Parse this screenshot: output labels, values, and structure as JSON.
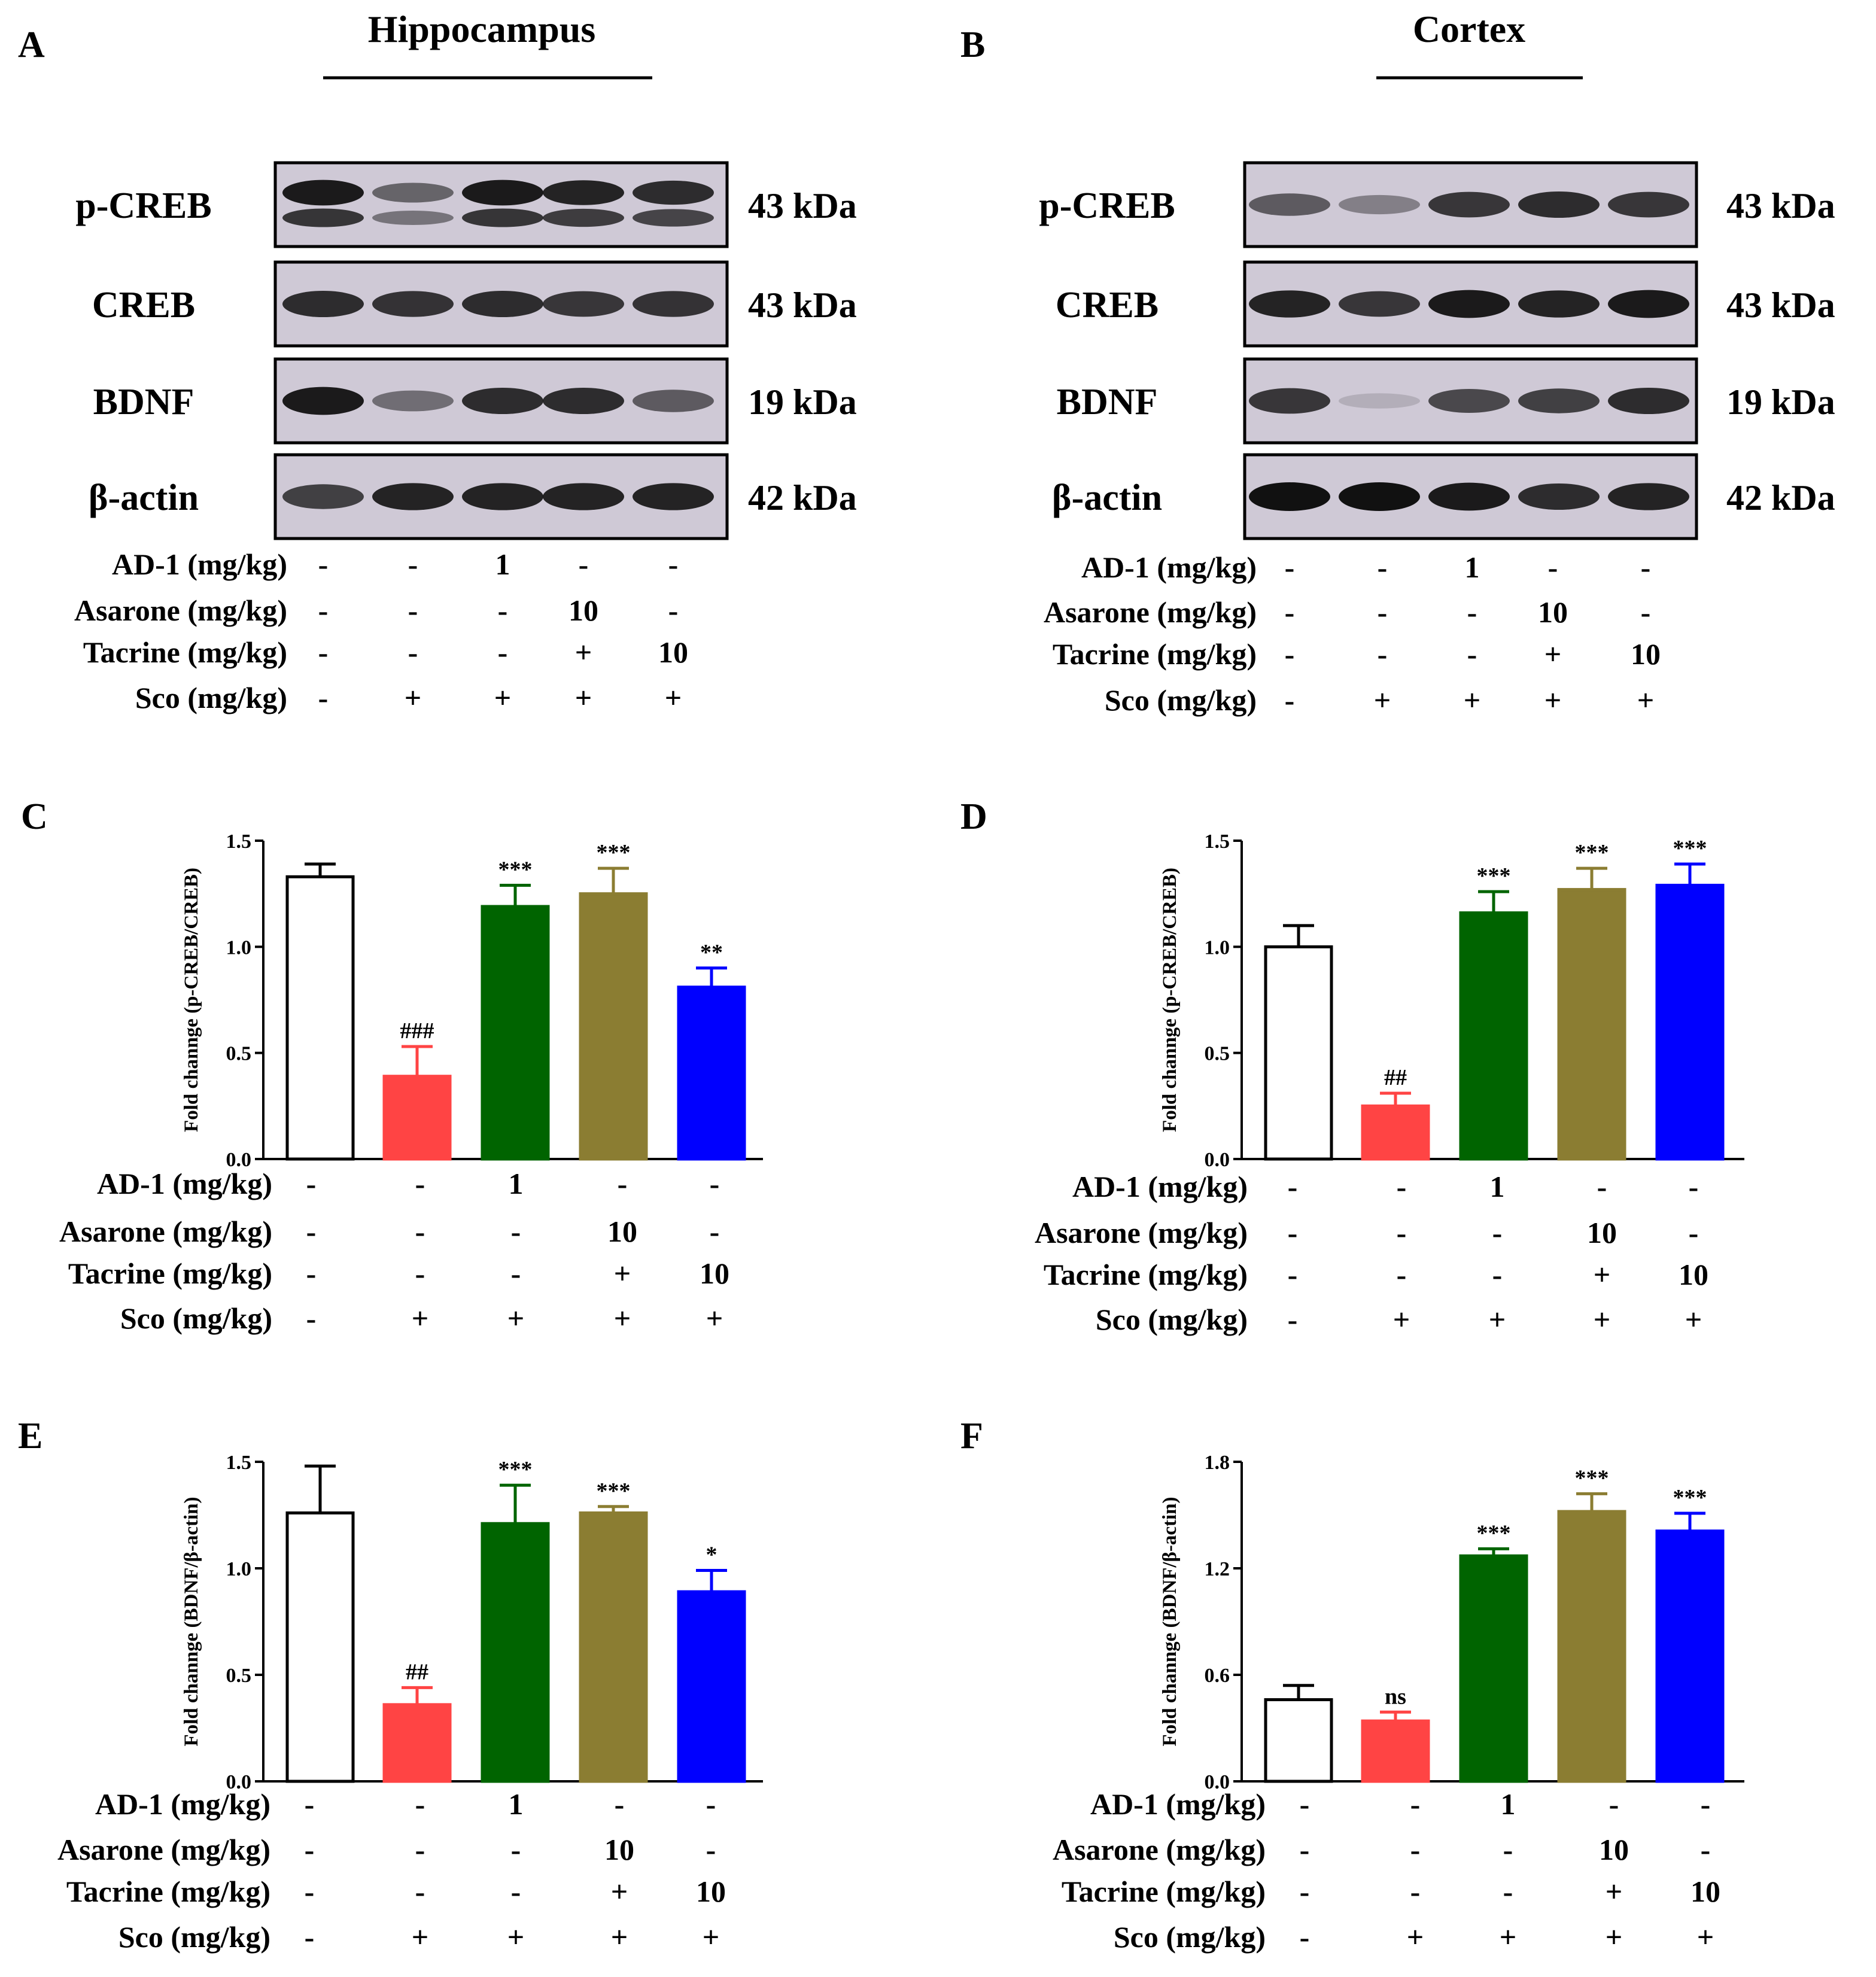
{
  "figure": {
    "panel_letters": [
      "A",
      "B",
      "C",
      "D",
      "E",
      "F"
    ],
    "blots": [
      {
        "region_title": "Hippocampus",
        "rows": [
          {
            "protein": "p-CREB",
            "mw": "43 kDa",
            "intensities": [
              0.95,
              0.55,
              0.95,
              0.9,
              0.85
            ],
            "double": true
          },
          {
            "protein": "CREB",
            "mw": "43 kDa",
            "intensities": [
              0.85,
              0.82,
              0.85,
              0.8,
              0.82
            ],
            "double": false
          },
          {
            "protein": "BDNF",
            "mw": "19 kDa",
            "intensities": [
              0.95,
              0.5,
              0.85,
              0.85,
              0.6
            ],
            "double": false
          },
          {
            "protein": "β-actin",
            "mw": "42 kDa",
            "intensities": [
              0.75,
              0.9,
              0.9,
              0.9,
              0.9
            ],
            "double": false
          }
        ]
      },
      {
        "region_title": "Cortex",
        "rows": [
          {
            "protein": "p-CREB",
            "mw": "43 kDa",
            "intensities": [
              0.6,
              0.4,
              0.8,
              0.85,
              0.8
            ],
            "double": false
          },
          {
            "protein": "CREB",
            "mw": "43 kDa",
            "intensities": [
              0.9,
              0.8,
              0.95,
              0.9,
              0.95
            ],
            "double": false
          },
          {
            "protein": "BDNF",
            "mw": "19 kDa",
            "intensities": [
              0.8,
              0.15,
              0.7,
              0.75,
              0.85
            ],
            "double": false
          },
          {
            "protein": "β-actin",
            "mw": "42 kDa",
            "intensities": [
              1.0,
              1.0,
              0.95,
              0.85,
              0.9
            ],
            "double": false
          }
        ]
      }
    ],
    "treatment_table": {
      "row_labels": [
        "AD-1 (mg/kg)",
        "Asarone (mg/kg)",
        "Tacrine (mg/kg)",
        "Sco (mg/kg)"
      ],
      "values": [
        [
          "-",
          "-",
          "1",
          "-",
          "-"
        ],
        [
          "-",
          "-",
          "-",
          "10",
          "-"
        ],
        [
          "-",
          "-",
          "-",
          "+",
          "10"
        ],
        [
          "-",
          "+",
          "+",
          "+",
          "+"
        ]
      ]
    }
  },
  "chart_data": [
    {
      "panel": "C",
      "type": "bar",
      "ylabel": "Fold channge (p-CREB/CREB)",
      "ylim": [
        0,
        1.5
      ],
      "yticks": [
        "0.0",
        "0.5",
        "1.0",
        "1.5"
      ],
      "ytick_values": [
        0,
        0.5,
        1.0,
        1.5
      ],
      "values": [
        1.33,
        0.39,
        1.19,
        1.25,
        0.81
      ],
      "errors": [
        0.06,
        0.14,
        0.1,
        0.12,
        0.09
      ],
      "annotations": [
        "",
        "###",
        "***",
        "***",
        "**"
      ]
    },
    {
      "panel": "D",
      "type": "bar",
      "ylabel": "Fold channge (p-CREB/CREB)",
      "ylim": [
        0,
        1.5
      ],
      "yticks": [
        "0.0",
        "0.5",
        "1.0",
        "1.5"
      ],
      "ytick_values": [
        0,
        0.5,
        1.0,
        1.5
      ],
      "values": [
        1.0,
        0.25,
        1.16,
        1.27,
        1.29
      ],
      "errors": [
        0.1,
        0.06,
        0.1,
        0.1,
        0.1
      ],
      "annotations": [
        "",
        "##",
        "***",
        "***",
        "***"
      ]
    },
    {
      "panel": "E",
      "type": "bar",
      "ylabel": "Fold channge (BDNF/β-actin)",
      "ylim": [
        0,
        1.5
      ],
      "yticks": [
        "0.0",
        "0.5",
        "1.0",
        "1.5"
      ],
      "ytick_values": [
        0,
        0.5,
        1.0,
        1.5
      ],
      "values": [
        1.26,
        0.36,
        1.21,
        1.26,
        0.89
      ],
      "errors": [
        0.22,
        0.08,
        0.18,
        0.03,
        0.1
      ],
      "annotations": [
        "",
        "##",
        "***",
        "***",
        "*"
      ]
    },
    {
      "panel": "F",
      "type": "bar",
      "ylabel": "Fold channge (BDNF/β-actin)",
      "ylim": [
        0,
        1.8
      ],
      "yticks": [
        "0.0",
        "0.6",
        "1.2",
        "1.8"
      ],
      "ytick_values": [
        0,
        0.6,
        1.2,
        1.8
      ],
      "values": [
        0.46,
        0.34,
        1.27,
        1.52,
        1.41
      ],
      "errors": [
        0.08,
        0.05,
        0.04,
        0.1,
        0.1
      ],
      "annotations": [
        "",
        "ns",
        "***",
        "***",
        "***"
      ]
    }
  ],
  "colors": {
    "bars": [
      "#ffffff",
      "#ff4444",
      "#006400",
      "#8b7d32",
      "#0000ff"
    ],
    "blot_bg": "#cfc9d6",
    "band": "#111111"
  }
}
